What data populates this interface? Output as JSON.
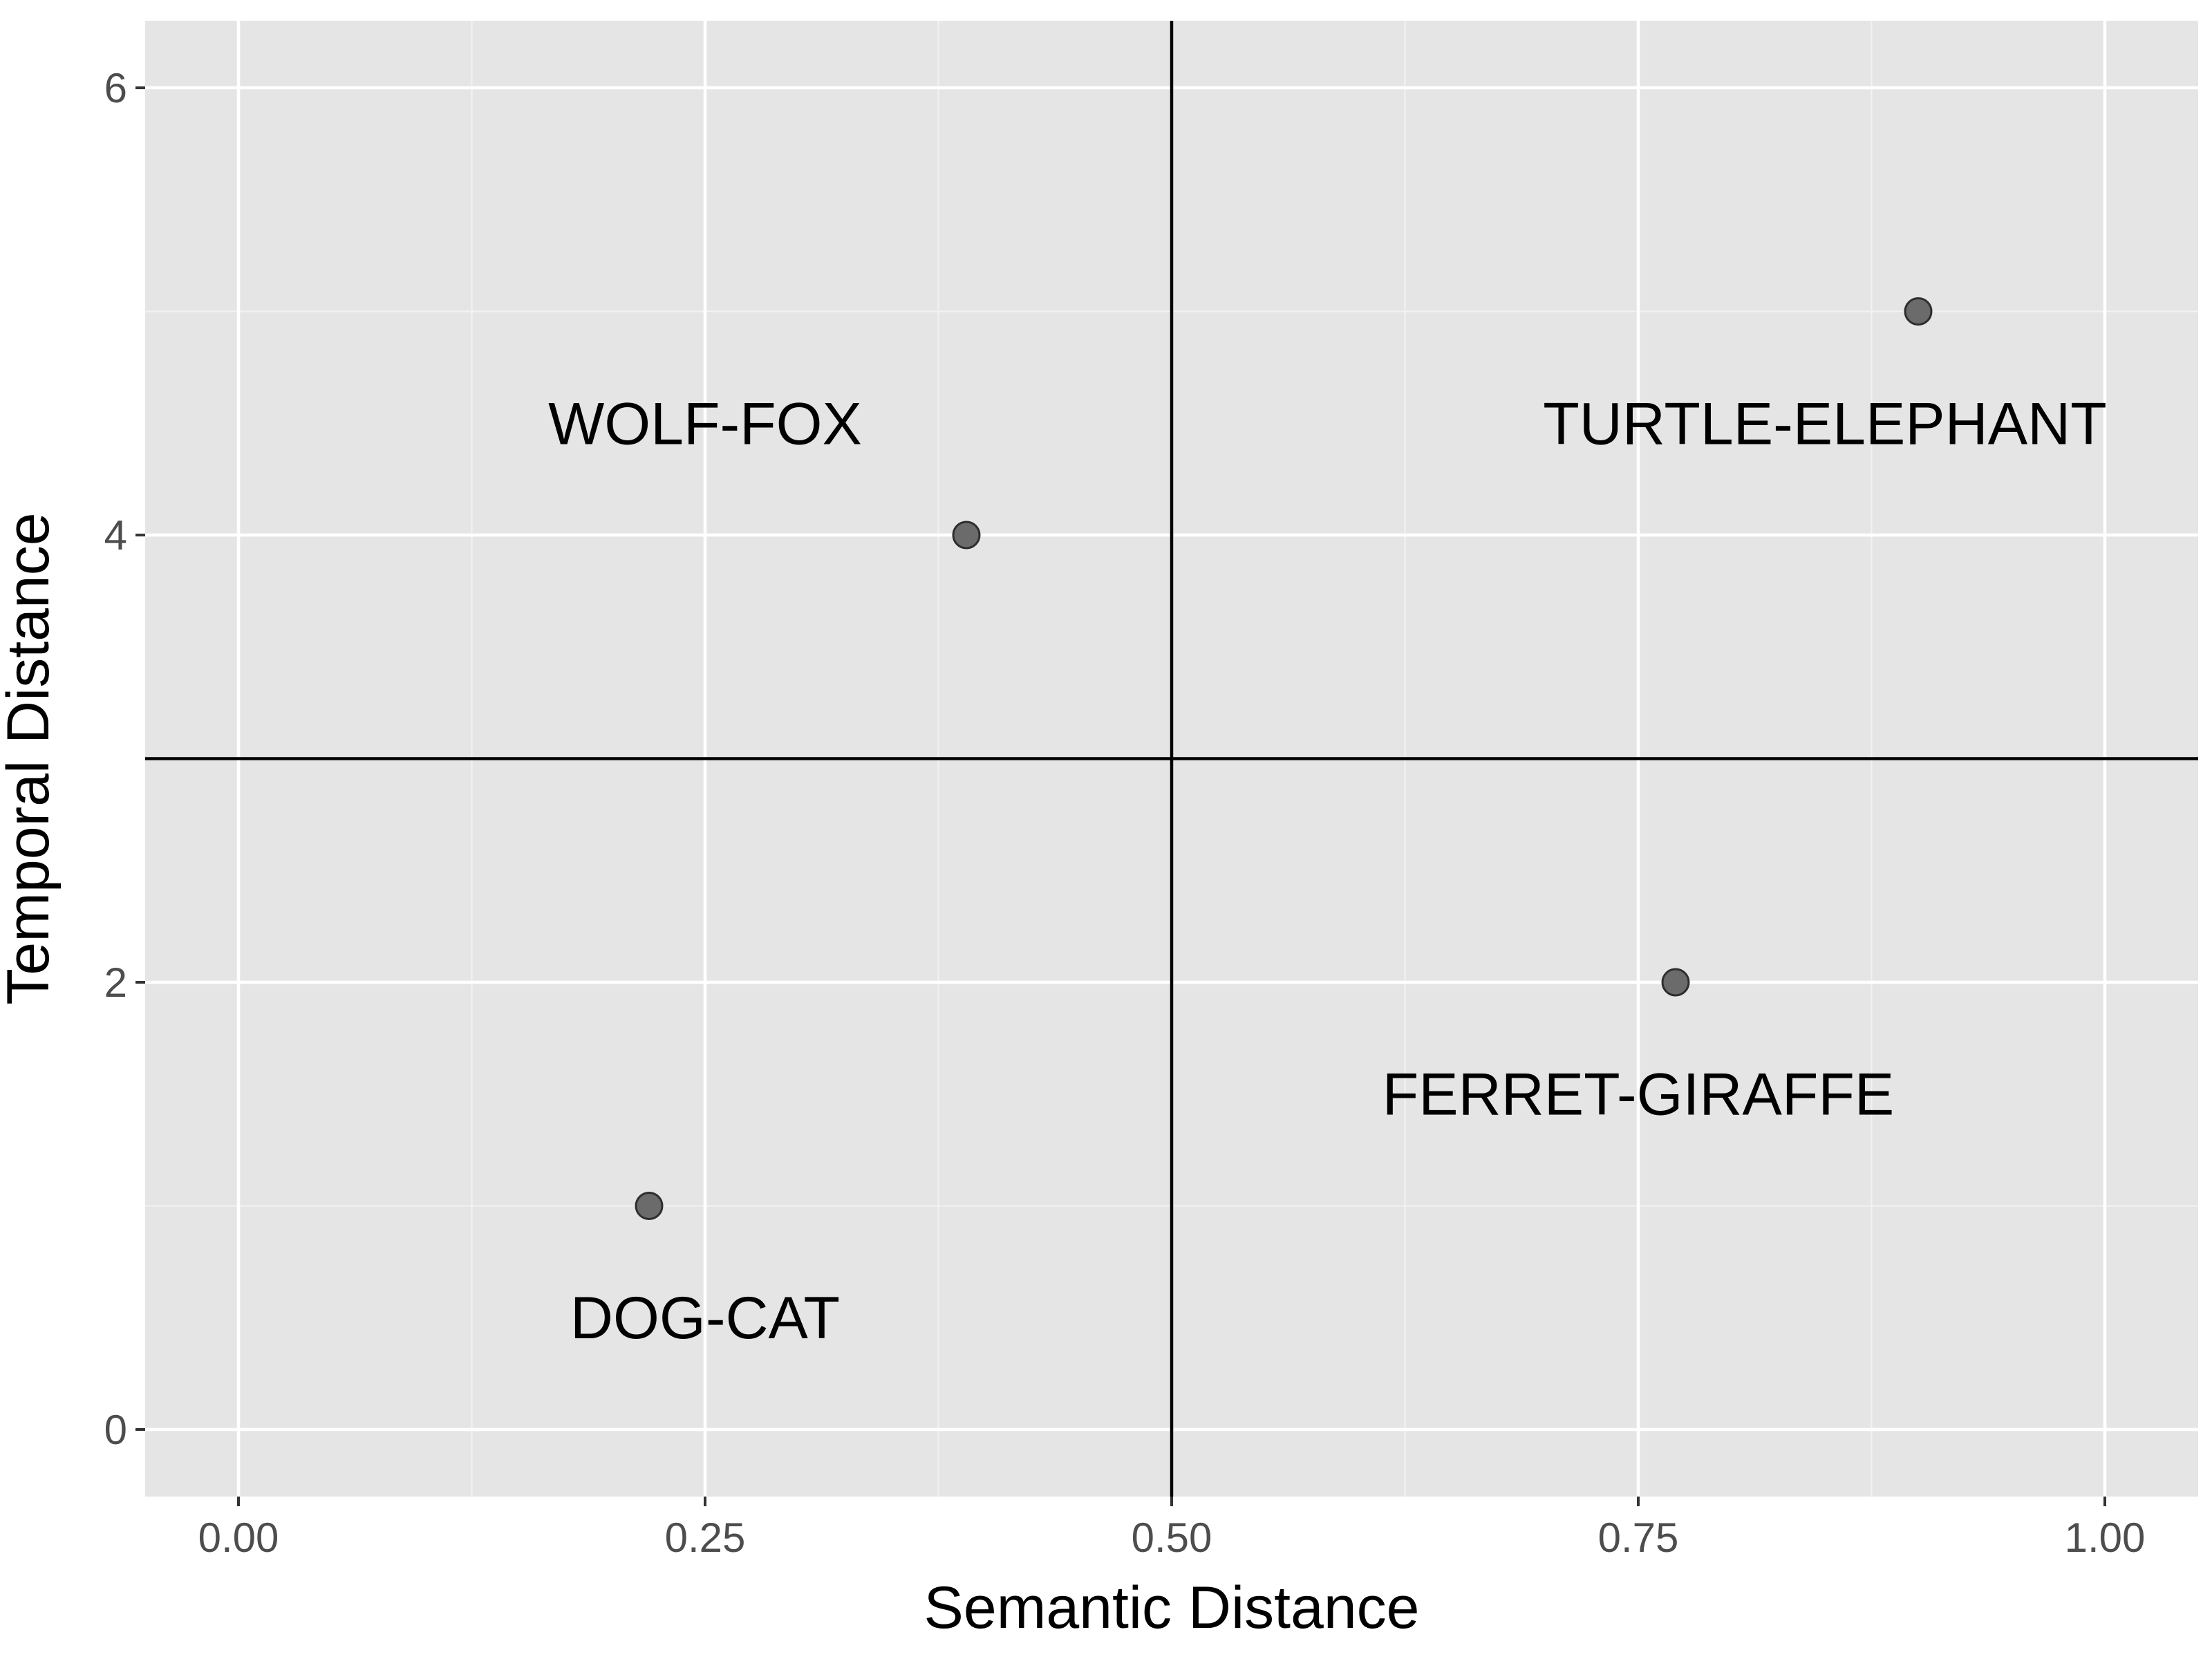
{
  "chart_data": {
    "type": "scatter",
    "title": "",
    "xlabel": "Semantic Distance",
    "ylabel": "Temporal Distance",
    "xlim": [
      -0.05,
      1.05
    ],
    "ylim": [
      -0.3,
      6.3
    ],
    "x_ticks": [
      0.0,
      0.25,
      0.5,
      0.75,
      1.0
    ],
    "x_tick_labels": [
      "0.00",
      "0.25",
      "0.50",
      "0.75",
      "1.00"
    ],
    "y_ticks": [
      0,
      2,
      4,
      6
    ],
    "y_tick_labels": [
      "0",
      "2",
      "4",
      "6"
    ],
    "x_minor_gridlines": [
      0.125,
      0.375,
      0.625,
      0.875
    ],
    "y_minor_gridlines": [
      1,
      3,
      5
    ],
    "grid": true,
    "legend": "none",
    "points": [
      {
        "x": 0.22,
        "y": 1
      },
      {
        "x": 0.39,
        "y": 4
      },
      {
        "x": 0.77,
        "y": 2
      },
      {
        "x": 0.9,
        "y": 5
      }
    ],
    "reference_lines": {
      "vertical_x": 0.5,
      "horizontal_y": 3
    },
    "annotations": [
      {
        "text": "WOLF-FOX",
        "x": 0.25,
        "y": 4.5
      },
      {
        "text": "TURTLE-ELEPHANT",
        "x": 0.85,
        "y": 4.5
      },
      {
        "text": "FERRET-GIRAFFE",
        "x": 0.75,
        "y": 1.5
      },
      {
        "text": "DOG-CAT",
        "x": 0.25,
        "y": 0.5
      }
    ],
    "colors": {
      "panel_background": "#e5e5e5",
      "grid_major": "#ffffff",
      "grid_minor": "#f2f2f2",
      "point_fill": "#6b6b6b",
      "point_stroke": "#2e2e2e",
      "reference_line": "#000000",
      "tick_mark": "#333333",
      "tick_label": "#4d4d4d"
    }
  }
}
